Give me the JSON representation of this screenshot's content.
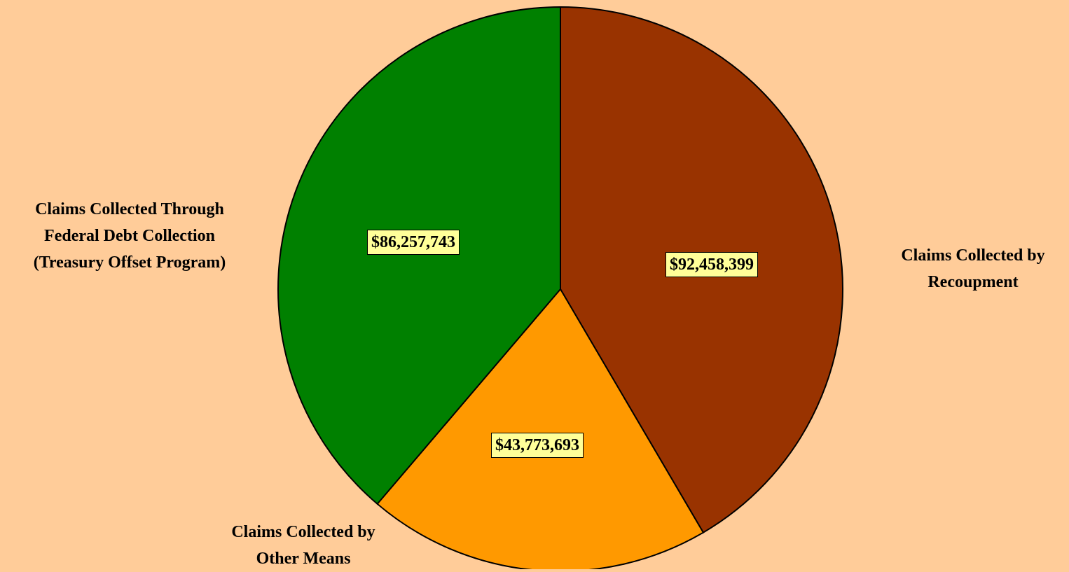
{
  "chart_data": {
    "type": "pie",
    "title": "",
    "slices": [
      {
        "name": "Claims Collected by Recoupment",
        "label_lines": [
          "Claims Collected by",
          "Recoupment"
        ],
        "value": 92458399,
        "value_label": "$92,458,399",
        "color": "#993300"
      },
      {
        "name": "Claims Collected by Other Means",
        "label_lines": [
          "Claims Collected by",
          "Other Means"
        ],
        "value": 43773693,
        "value_label": "$43,773,693",
        "color": "#FF9900"
      },
      {
        "name": "Claims Collected Through Federal Debt Collection (Treasury Offset Program)",
        "label_lines": [
          "Claims Collected Through",
          "Federal Debt Collection",
          "(Treasury Offset Program)"
        ],
        "value": 86257743,
        "value_label": "$86,257,743",
        "color": "#008000"
      }
    ],
    "start_angle_deg": 0,
    "direction": "clockwise",
    "legend": "none",
    "label_style": {
      "value_box_fill": "#FFFF99",
      "border": "#000000"
    },
    "background": "#FFCC99"
  }
}
